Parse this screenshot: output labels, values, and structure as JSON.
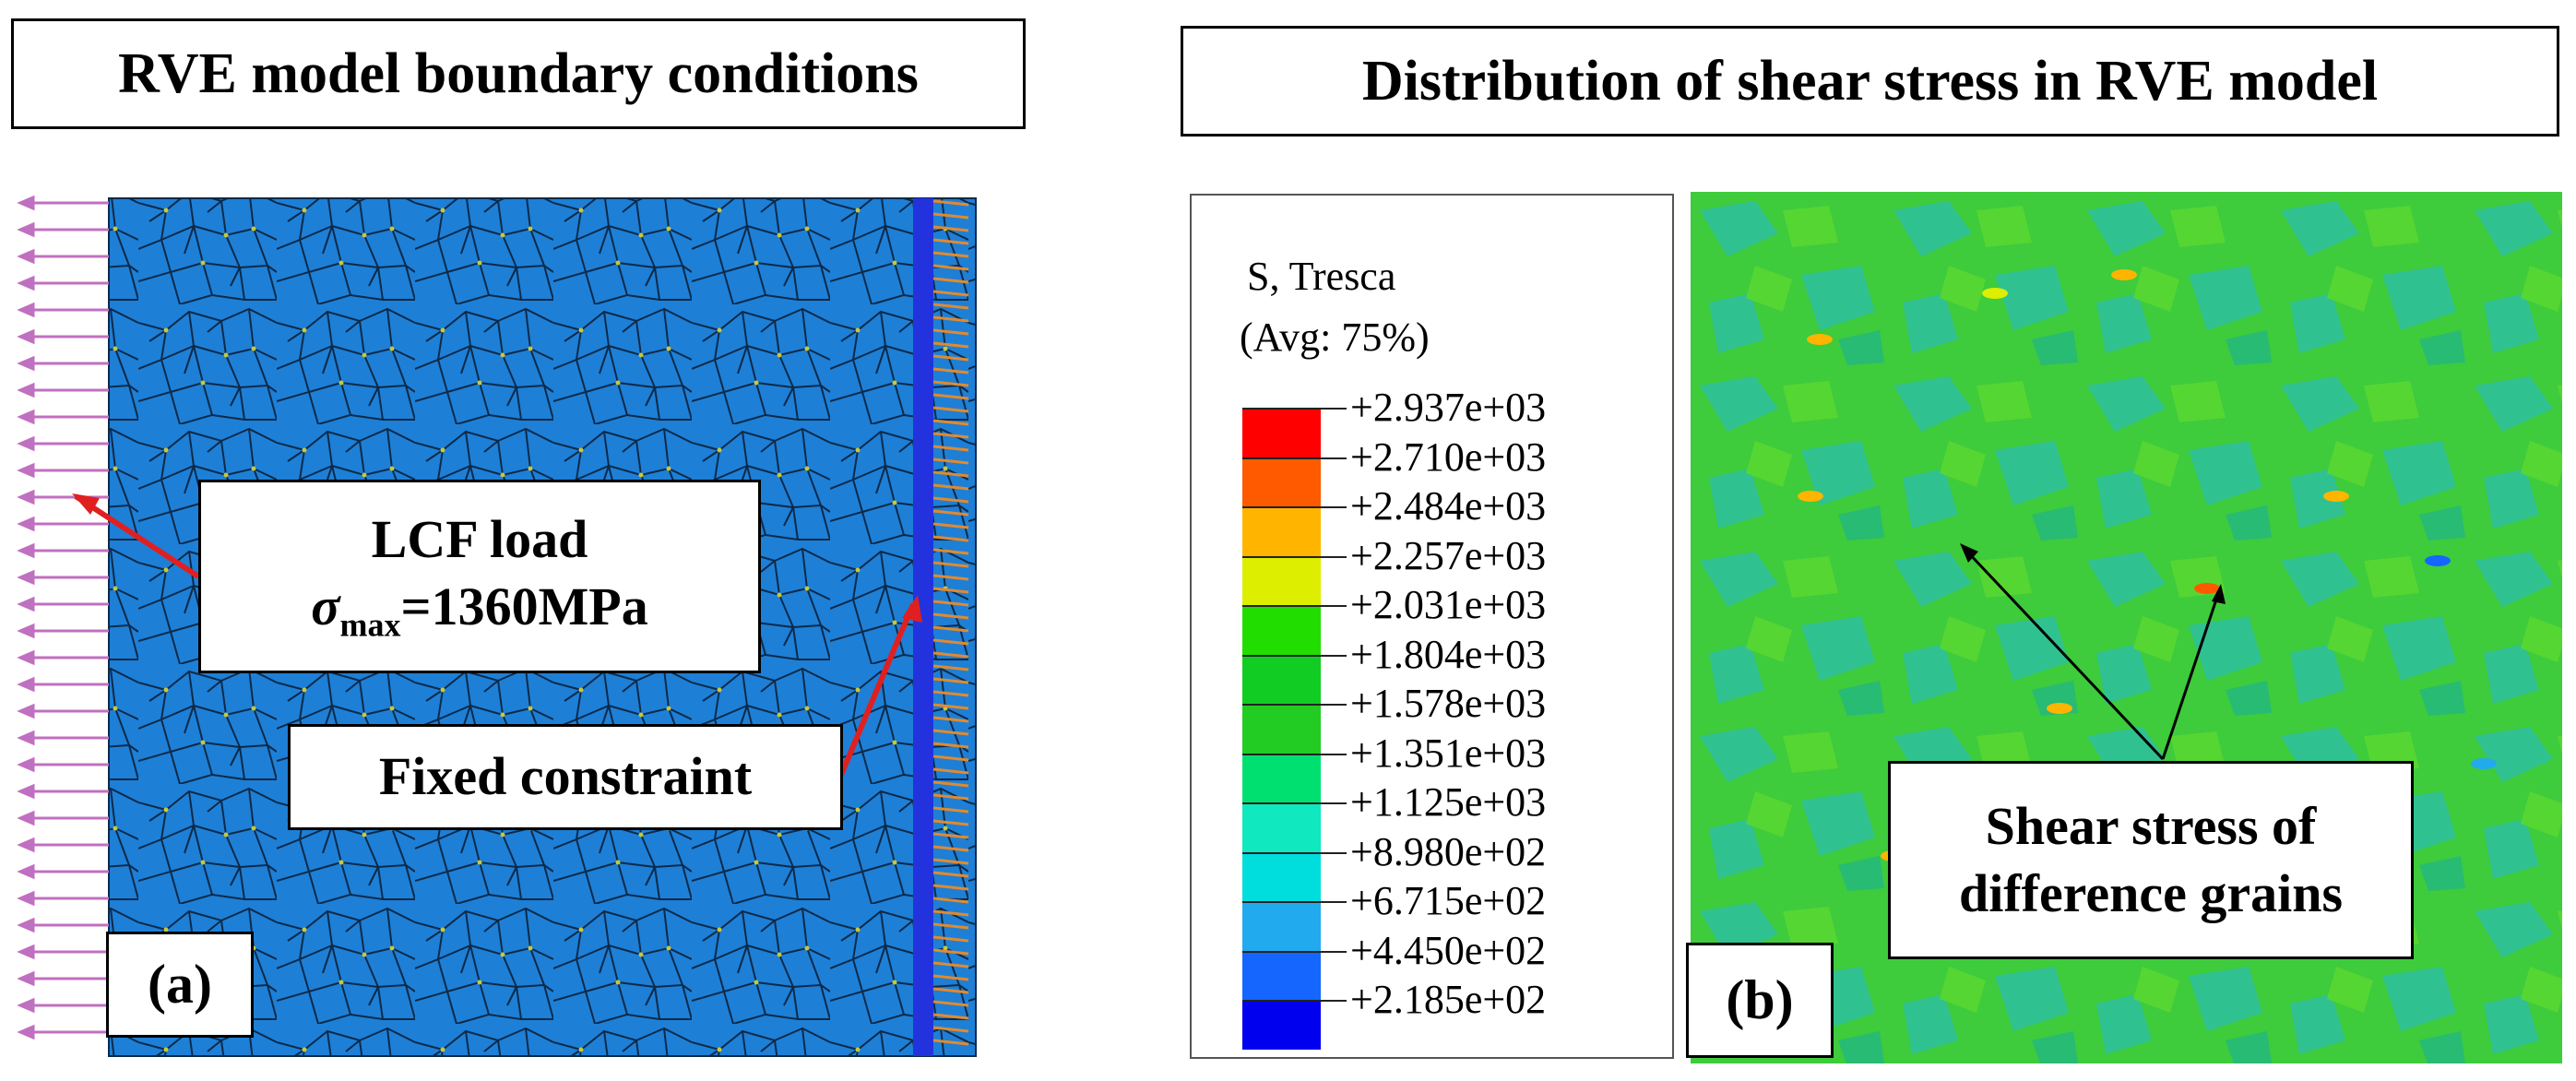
{
  "left_panel": {
    "title": "RVE model boundary conditions",
    "load_callout": {
      "line1": "LCF load",
      "sigma": "σ",
      "subscript": "max",
      "value": "=1360MPa"
    },
    "constraint_label": "Fixed constraint",
    "panel_label": "(a)",
    "colors": {
      "mesh_fill": "#1e7fd6",
      "mesh_line": "#0b2a4a",
      "load_arrow": "#c070c0",
      "pointer": "#e02020",
      "constraint": "#2233dd"
    }
  },
  "right_panel": {
    "title": "Distribution of shear stress in RVE model",
    "legend": {
      "title_line1": "S, Tresca",
      "title_line2": "(Avg: 75%)",
      "values": [
        "+2.937e+03",
        "+2.710e+03",
        "+2.484e+03",
        "+2.257e+03",
        "+2.031e+03",
        "+1.804e+03",
        "+1.578e+03",
        "+1.351e+03",
        "+1.125e+03",
        "+8.980e+02",
        "+6.715e+02",
        "+4.450e+02",
        "+2.185e+02"
      ],
      "colors": [
        "#ff0000",
        "#ff5a00",
        "#ffb400",
        "#ddee00",
        "#22dd00",
        "#11cc22",
        "#22cc22",
        "#00e070",
        "#10e8c0",
        "#00dddd",
        "#22aaee",
        "#1466ff",
        "#0000ee"
      ]
    },
    "callout_line1": "Shear stress of",
    "callout_line2": "difference grains",
    "panel_label": "(b)",
    "colors": {
      "field_base": "#3ecb3c",
      "field_cool": "#2ec0a0",
      "arrow": "#000000"
    }
  }
}
